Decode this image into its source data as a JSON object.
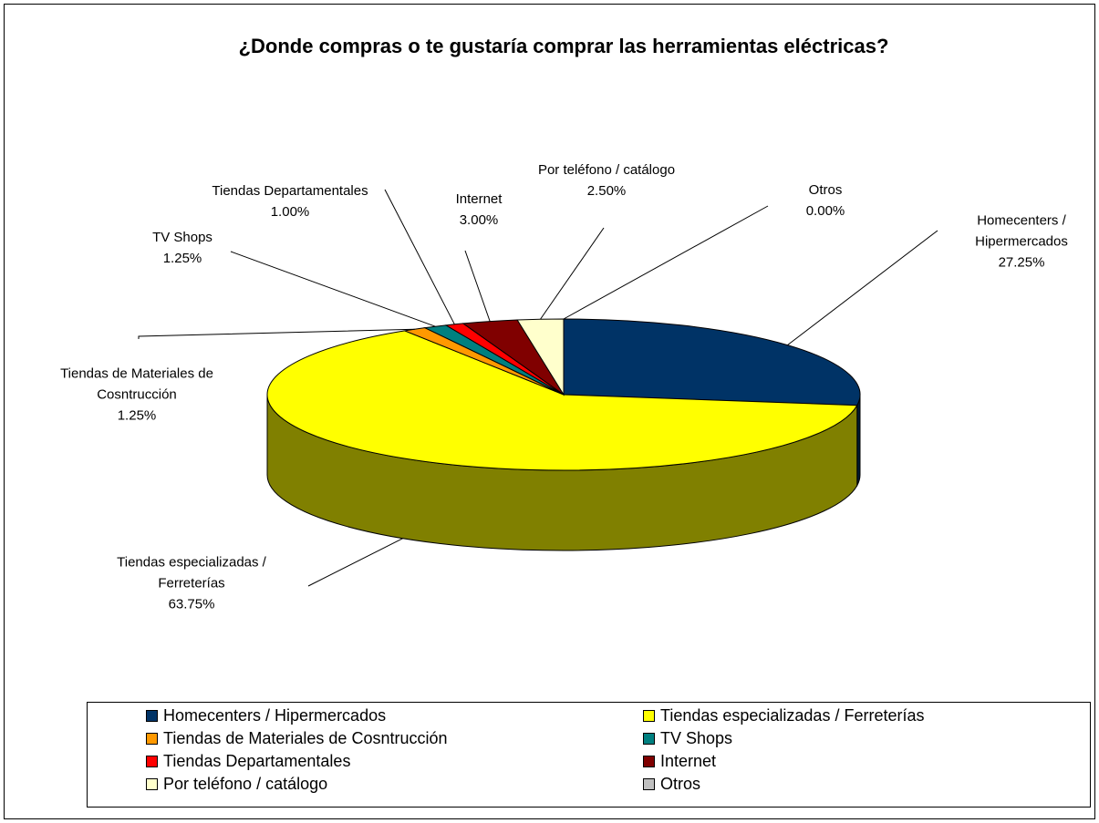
{
  "chart_data": {
    "type": "pie3d",
    "title": "¿Donde compras o te gustaría comprar las herramientas eléctricas?",
    "categories": [
      "Homecenters / Hipermercados",
      "Tiendas especializadas / Ferreterías",
      "Tiendas de Materiales de Cosntrucción",
      "TV Shops",
      "Tiendas Departamentales",
      "Internet",
      "Por teléfono / catálogo",
      "Otros"
    ],
    "values": [
      27.25,
      63.75,
      1.25,
      1.25,
      1.0,
      3.0,
      2.5,
      0.0
    ],
    "value_labels": [
      "27.25%",
      "63.75%",
      "1.25%",
      "1.25%",
      "1.00%",
      "3.00%",
      "2.50%",
      "0.00%"
    ],
    "colors": [
      "#003366",
      "#ffff00",
      "#ff9900",
      "#008080",
      "#ff0000",
      "#800000",
      "#ffffcc",
      "#c0c0c0"
    ],
    "legend": "bottom"
  }
}
